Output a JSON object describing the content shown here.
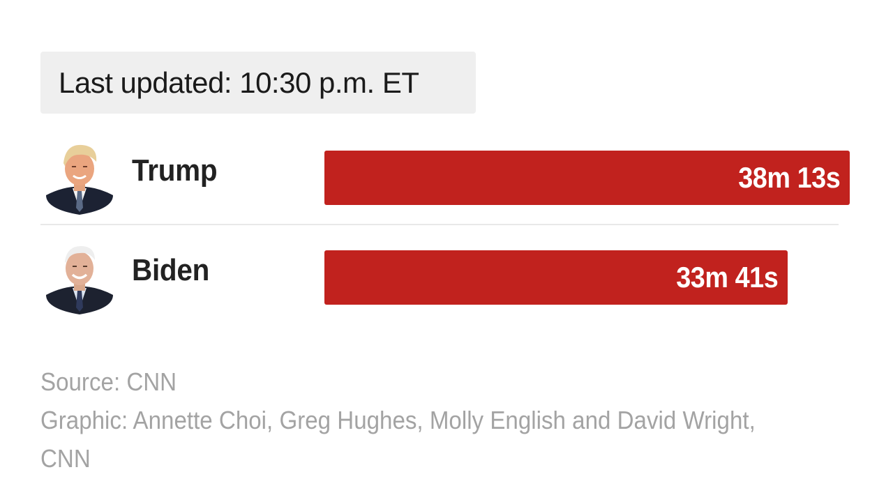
{
  "last_updated": "Last updated: 10:30 p.m. ET",
  "chart_data": {
    "type": "bar",
    "orientation": "horizontal",
    "categories": [
      "Trump",
      "Biden"
    ],
    "values_seconds": [
      2293,
      2021
    ],
    "value_labels": [
      "38m 13s",
      "33m 41s"
    ],
    "max_seconds": 2293,
    "bar_color": "#c1221e"
  },
  "footer": {
    "source": "Source: CNN",
    "graphic_line1": "Graphic: Annette Choi, Greg Hughes, Molly English and David Wright,",
    "graphic_line2": "CNN"
  },
  "colors": {
    "bar": "#c1221e",
    "updated_bg": "#efefef",
    "footer_text": "#a3a3a3",
    "name_text": "#222222"
  }
}
